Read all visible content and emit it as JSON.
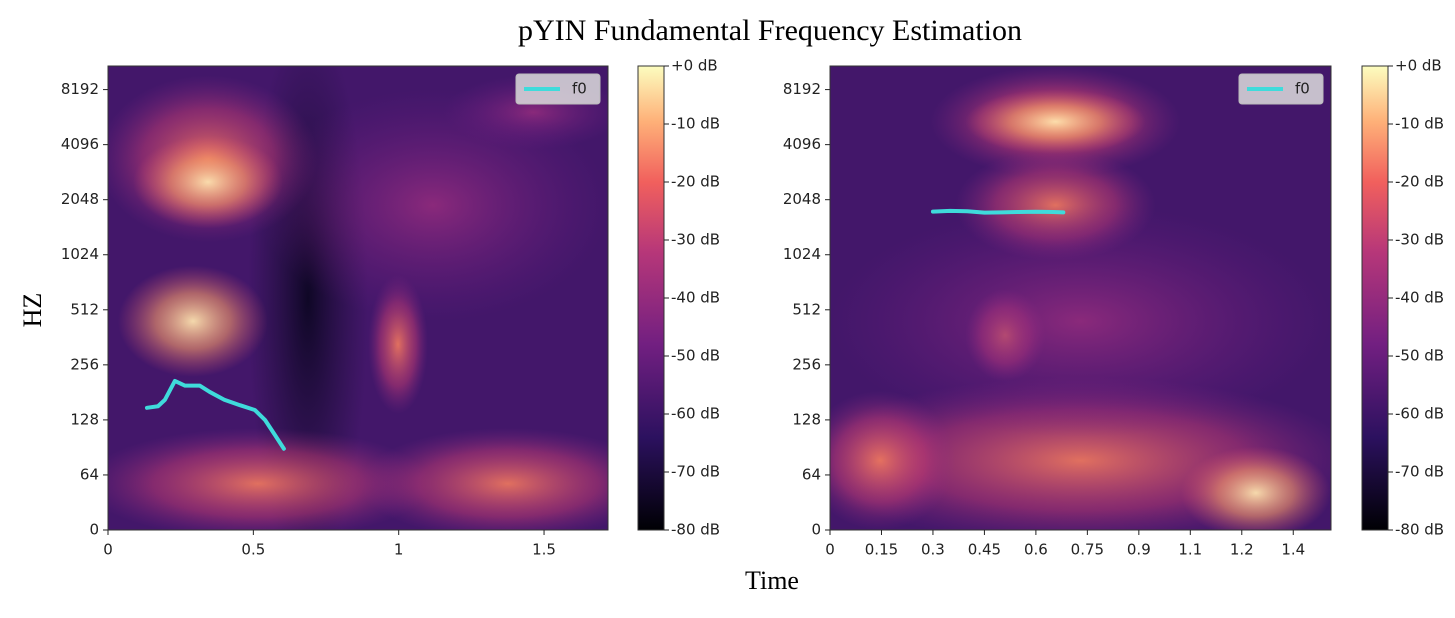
{
  "title": "pYIN Fundamental Frequency Estimation",
  "xlabel": "Time",
  "ylabel": "HZ",
  "chart_data": [
    {
      "type": "line",
      "x": [
        0.134,
        0.172,
        0.196,
        0.23,
        0.265,
        0.316,
        0.35,
        0.4,
        0.454,
        0.505,
        0.54,
        0.574,
        0.605
      ],
      "series": [
        {
          "name": "f0",
          "color": "#3fdbdb",
          "values": [
            149,
            152,
            165,
            209,
            197,
            197,
            182,
            165,
            154,
            145,
            128,
            106,
            89
          ]
        }
      ],
      "xlim": [
        0,
        1.72
      ],
      "xticks": [
        0,
        0.5,
        1,
        1.5
      ],
      "ylim": [
        0,
        11025
      ],
      "yscale": "symlog",
      "linthresh": 64,
      "yticks": [
        0,
        64,
        128,
        256,
        512,
        1024,
        2048,
        4096,
        8192
      ],
      "legend": "upper right",
      "colorbar": {
        "lim": [
          -80,
          0
        ],
        "ticks": [
          {
            "value": 0,
            "label": "+0 dB"
          },
          {
            "value": -10,
            "label": "-10 dB"
          },
          {
            "value": -20,
            "label": "-20 dB"
          },
          {
            "value": -30,
            "label": "-30 dB"
          },
          {
            "value": -40,
            "label": "-40 dB"
          },
          {
            "value": -50,
            "label": "-50 dB"
          },
          {
            "value": -60,
            "label": "-60 dB"
          },
          {
            "value": -70,
            "label": "-70 dB"
          },
          {
            "value": -80,
            "label": "-80 dB"
          }
        ]
      }
    },
    {
      "type": "line",
      "x": [
        0.3,
        0.35,
        0.4,
        0.45,
        0.5,
        0.55,
        0.6,
        0.65,
        0.68
      ],
      "series": [
        {
          "name": "f0",
          "color": "#3fdbdb",
          "values": [
            1762,
            1780,
            1770,
            1740,
            1745,
            1755,
            1760,
            1755,
            1745
          ]
        }
      ],
      "xlim": [
        0,
        1.46
      ],
      "xticks": [
        0,
        0.15,
        0.3,
        0.45,
        0.6,
        0.75,
        0.9,
        {
          "value": 1.05,
          "label": "1.1"
        },
        1.2,
        {
          "value": 1.35,
          "label": "1.4"
        }
      ],
      "ylim": [
        0,
        11025
      ],
      "yscale": "symlog",
      "linthresh": 64,
      "yticks": [
        0,
        64,
        128,
        256,
        512,
        1024,
        2048,
        4096,
        8192
      ],
      "legend": "upper right",
      "colorbar": {
        "lim": [
          -80,
          0
        ],
        "ticks": [
          {
            "value": 0,
            "label": "+0 dB"
          },
          {
            "value": -10,
            "label": "-10 dB"
          },
          {
            "value": -20,
            "label": "-20 dB"
          },
          {
            "value": -30,
            "label": "-30 dB"
          },
          {
            "value": -40,
            "label": "-40 dB"
          },
          {
            "value": -50,
            "label": "-50 dB"
          },
          {
            "value": -60,
            "label": "-60 dB"
          },
          {
            "value": -70,
            "label": "-70 dB"
          },
          {
            "value": -80,
            "label": "-80 dB"
          }
        ]
      }
    }
  ]
}
